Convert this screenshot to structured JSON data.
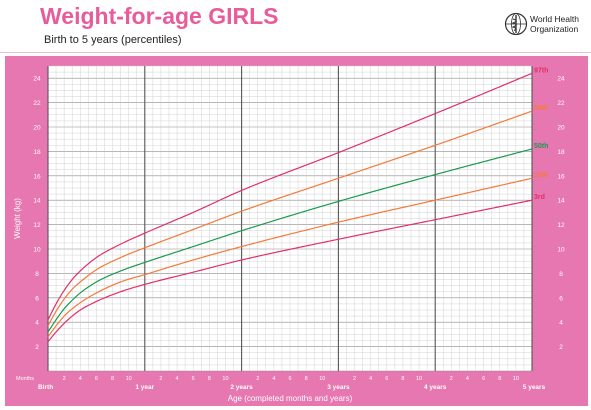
{
  "header": {
    "title": "Weight-for-age GIRLS",
    "subtitle": "Birth to 5 years (percentiles)",
    "org_line1": "World Health",
    "org_line2": "Organization",
    "logo_icon": "who-emblem-icon"
  },
  "colors": {
    "frame": "#e777b0",
    "grid": "#999999",
    "grid_major": "#555555",
    "title": "#e75c9b"
  },
  "chart_data": {
    "type": "line",
    "title": "Weight-for-age GIRLS",
    "subtitle": "Birth to 5 years (percentiles)",
    "xlabel": "Age (completed months and years)",
    "ylabel": "Weight (kg)",
    "xlim": [
      0,
      60
    ],
    "ylim": [
      0,
      25
    ],
    "y_ticks": [
      2,
      4,
      6,
      8,
      10,
      12,
      14,
      16,
      18,
      20,
      22,
      24
    ],
    "x_row_label": "Months",
    "x_major_labels": [
      {
        "month": 0,
        "label": "Birth"
      },
      {
        "month": 12,
        "label": "1 year"
      },
      {
        "month": 24,
        "label": "2 years"
      },
      {
        "month": 36,
        "label": "3 years"
      },
      {
        "month": 48,
        "label": "4 years"
      },
      {
        "month": 60,
        "label": "5 years"
      }
    ],
    "x_minor_labels": [
      "2",
      "4",
      "6",
      "8",
      "10"
    ],
    "grid": true,
    "series": [
      {
        "name": "97th",
        "color": "#e0306a",
        "x": [
          0,
          1,
          2,
          3,
          4,
          6,
          9,
          12,
          18,
          24,
          36,
          48,
          60
        ],
        "y": [
          4.2,
          5.5,
          6.6,
          7.5,
          8.2,
          9.3,
          10.4,
          11.3,
          13.0,
          14.8,
          17.9,
          21.1,
          24.4
        ]
      },
      {
        "name": "85th",
        "color": "#f47a3a",
        "x": [
          0,
          1,
          2,
          3,
          4,
          6,
          9,
          12,
          18,
          24,
          36,
          48,
          60
        ],
        "y": [
          3.7,
          4.9,
          5.9,
          6.7,
          7.3,
          8.3,
          9.3,
          10.1,
          11.6,
          13.1,
          15.8,
          18.5,
          21.3
        ]
      },
      {
        "name": "50th",
        "color": "#1a9a50",
        "x": [
          0,
          1,
          2,
          3,
          4,
          6,
          9,
          12,
          18,
          24,
          36,
          48,
          60
        ],
        "y": [
          3.2,
          4.2,
          5.1,
          5.8,
          6.4,
          7.3,
          8.2,
          8.9,
          10.2,
          11.5,
          13.9,
          16.1,
          18.2
        ]
      },
      {
        "name": "15th",
        "color": "#f47a3a",
        "x": [
          0,
          1,
          2,
          3,
          4,
          6,
          9,
          12,
          18,
          24,
          36,
          48,
          60
        ],
        "y": [
          2.8,
          3.7,
          4.5,
          5.1,
          5.6,
          6.4,
          7.3,
          7.9,
          9.1,
          10.2,
          12.2,
          14.0,
          15.8
        ]
      },
      {
        "name": "3rd",
        "color": "#e0306a",
        "x": [
          0,
          1,
          2,
          3,
          4,
          6,
          9,
          12,
          18,
          24,
          36,
          48,
          60
        ],
        "y": [
          2.4,
          3.2,
          3.9,
          4.5,
          5.0,
          5.7,
          6.5,
          7.1,
          8.1,
          9.1,
          10.8,
          12.4,
          14.0
        ]
      }
    ]
  }
}
